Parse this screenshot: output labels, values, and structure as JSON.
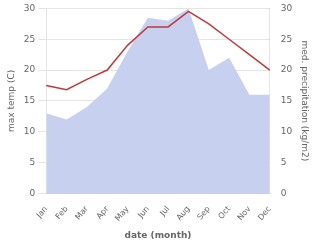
{
  "chart_data": {
    "type": "line",
    "xlabel": "date (month)",
    "ylabel": "max temp (C)",
    "y2label": "med. precipitation (kg/m2)",
    "categories": [
      "Jan",
      "Feb",
      "Mar",
      "Apr",
      "May",
      "Jun",
      "Jul",
      "Aug",
      "Sep",
      "Oct",
      "Nov",
      "Dec"
    ],
    "series": [
      {
        "type": "area",
        "color": "#c8d0f0",
        "values": [
          13,
          12,
          14,
          17,
          23,
          28.5,
          28,
          30,
          20,
          22,
          16,
          16
        ]
      },
      {
        "type": "line",
        "color": "#c0393b",
        "values": [
          17.5,
          16.8,
          18.5,
          20.0,
          24.0,
          27.0,
          27.0,
          29.5,
          27.5,
          25.0,
          22.5,
          20.0
        ]
      }
    ],
    "ylim": [
      0,
      30
    ],
    "yticks": [
      0,
      5,
      10,
      15,
      20,
      25,
      30
    ],
    "y2lim": [
      0,
      30
    ],
    "y2ticks": [
      0,
      5,
      10,
      15,
      20,
      25,
      30
    ],
    "grid": "y"
  }
}
